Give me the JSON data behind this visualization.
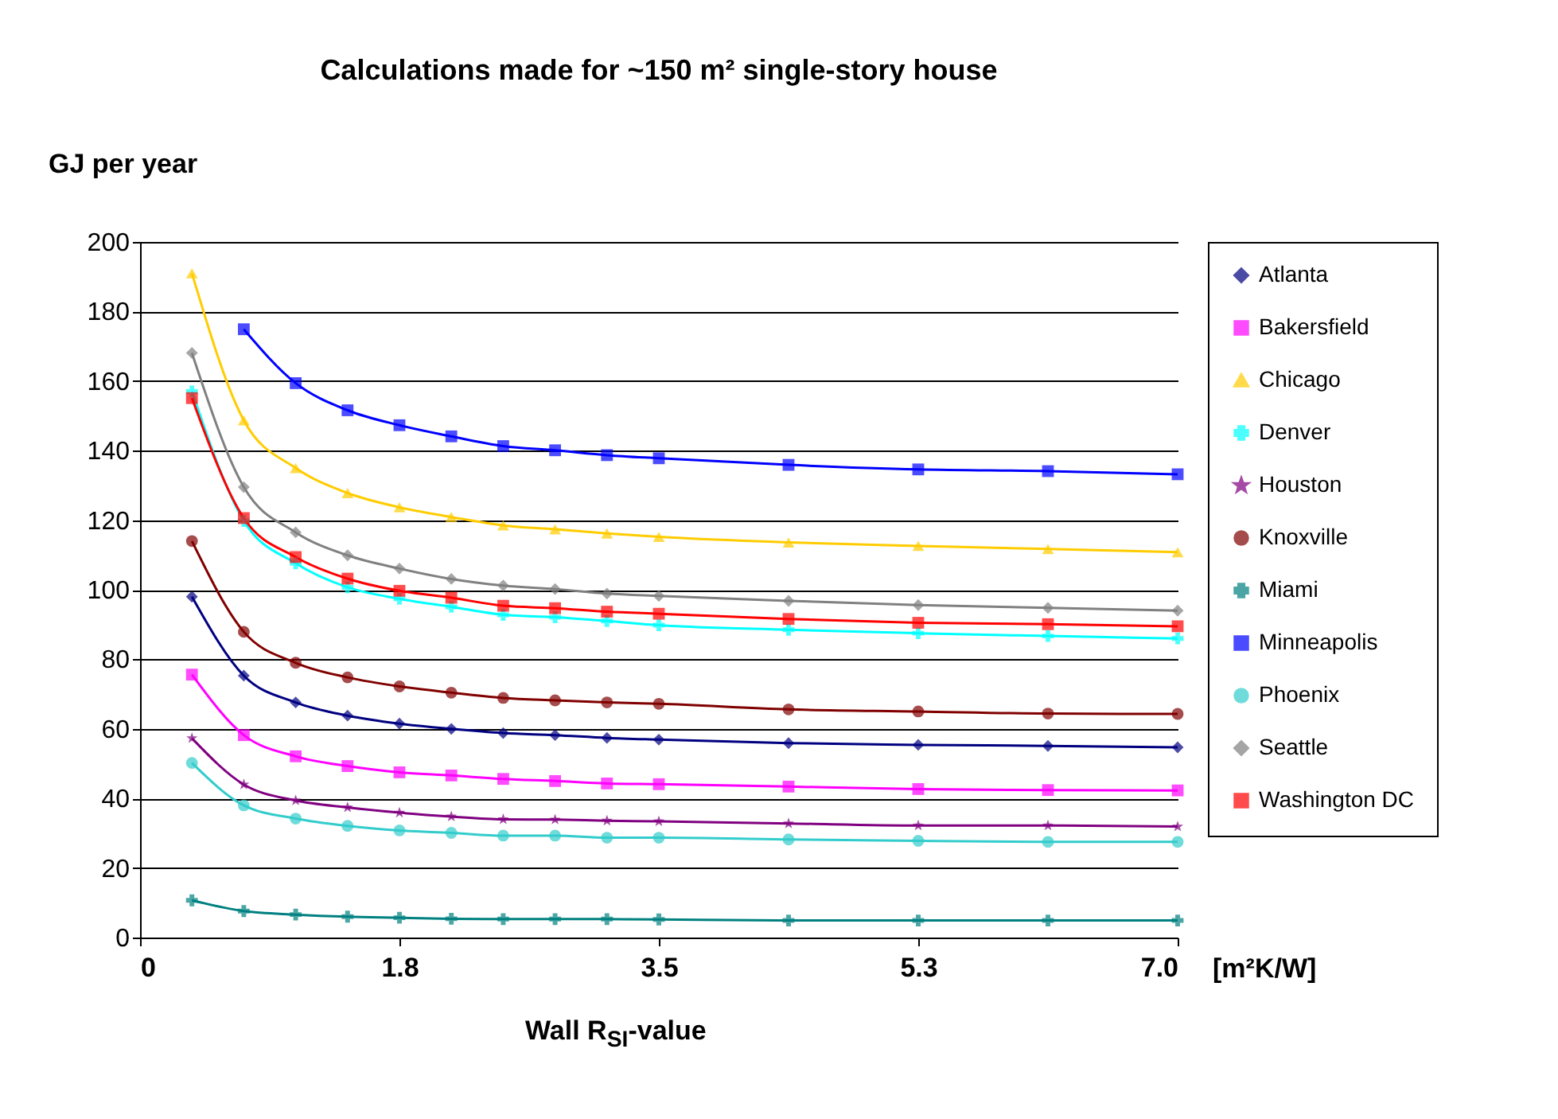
{
  "chart_data": {
    "type": "line",
    "title": "Calculations made for ~150 m² single-story house",
    "ylabel": "GJ per year",
    "xlabel": "Wall R$_{SI}$-value",
    "annotations": [
      "[m²K/W]"
    ],
    "x": [
      0.352,
      0.704,
      1.056,
      1.408,
      1.76,
      2.112,
      2.464,
      2.816,
      3.168,
      3.52,
      4.4,
      5.28,
      6.16,
      7.04
    ],
    "xlim": [
      0,
      7.04
    ],
    "xticks": [
      0,
      {
        "value": 1.76,
        "label": "1.8"
      },
      {
        "value": 3.52,
        "label": "3.5"
      },
      {
        "value": 5.28,
        "label": "5.3"
      },
      {
        "value": 7.04,
        "label": "7.0"
      }
    ],
    "ylim": [
      0,
      200
    ],
    "yticks": [
      0,
      20,
      40,
      60,
      80,
      100,
      120,
      140,
      160,
      180,
      200
    ],
    "grid": "y",
    "legend": "right",
    "series": [
      {
        "name": "Atlanta",
        "color": "#000080",
        "marker": "diamond",
        "values": [
          98,
          75.3,
          67.6,
          63.8,
          61.5,
          60,
          58.8,
          58.2,
          57.4,
          56.9,
          55.9,
          55.4,
          55.1,
          54.7
        ]
      },
      {
        "name": "Bakersfield",
        "color": "#ff00ff",
        "marker": "square",
        "values": [
          75.6,
          58.2,
          52.1,
          49.3,
          47.5,
          46.6,
          45.6,
          45,
          44.3,
          44.1,
          43.4,
          42.7,
          42.4,
          42.3
        ]
      },
      {
        "name": "Chicago",
        "color": "#ffcc00",
        "marker": "triangle",
        "values": [
          191,
          148.7,
          135,
          127.8,
          123.7,
          120.9,
          118.5,
          117.4,
          116.2,
          115.2,
          113.6,
          112.6,
          111.7,
          110.8
        ]
      },
      {
        "name": "Denver",
        "color": "#00ffff",
        "marker": "cross",
        "values": [
          157,
          119.8,
          107.6,
          100.7,
          97.4,
          95.1,
          92.8,
          92.1,
          91,
          89.8,
          88.5,
          87.5,
          86.7,
          86
        ]
      },
      {
        "name": "Houston",
        "color": "#800080",
        "marker": "star",
        "values": [
          57.3,
          44,
          39.4,
          37.4,
          35.9,
          34.8,
          34,
          33.9,
          33.6,
          33.4,
          32.8,
          32.2,
          32.2,
          31.9
        ]
      },
      {
        "name": "Knoxville",
        "color": "#800000",
        "marker": "circle",
        "values": [
          114,
          87.9,
          79,
          74.8,
          72.2,
          70.4,
          68.9,
          68.2,
          67.6,
          67.2,
          65.6,
          65,
          64.4,
          64.3
        ]
      },
      {
        "name": "Miami",
        "color": "#008080",
        "marker": "cross",
        "values": [
          10.7,
          7.6,
          6.6,
          6,
          5.7,
          5.4,
          5.3,
          5.3,
          5.3,
          5.2,
          4.9,
          4.9,
          4.9,
          4.9
        ]
      },
      {
        "name": "Minneapolis",
        "color": "#0000ff",
        "marker": "square",
        "values": [
          null,
          174.9,
          159.4,
          151.6,
          147.3,
          144.1,
          141.3,
          140.1,
          138.7,
          137.8,
          135.9,
          134.6,
          134.1,
          133.2
        ]
      },
      {
        "name": "Phoenix",
        "color": "#33cccc",
        "marker": "circle",
        "values": [
          50.2,
          38,
          34.2,
          32.1,
          30.8,
          30.1,
          29.3,
          29.3,
          28.7,
          28.7,
          28.2,
          27.8,
          27.5,
          27.5
        ]
      },
      {
        "name": "Seattle",
        "color": "#808080",
        "marker": "diamond",
        "values": [
          168.1,
          129.5,
          116.5,
          109.9,
          106.1,
          103.1,
          101.2,
          100.2,
          98.9,
          98.2,
          96.8,
          95.6,
          94.8,
          94
        ]
      },
      {
        "name": "Washington DC",
        "color": "#ff0000",
        "marker": "square",
        "values": [
          155.1,
          120.6,
          109.4,
          103.2,
          99.7,
          97.7,
          95.4,
          94.7,
          93.7,
          93.1,
          91.6,
          90.5,
          90.1,
          89.5
        ]
      }
    ]
  }
}
